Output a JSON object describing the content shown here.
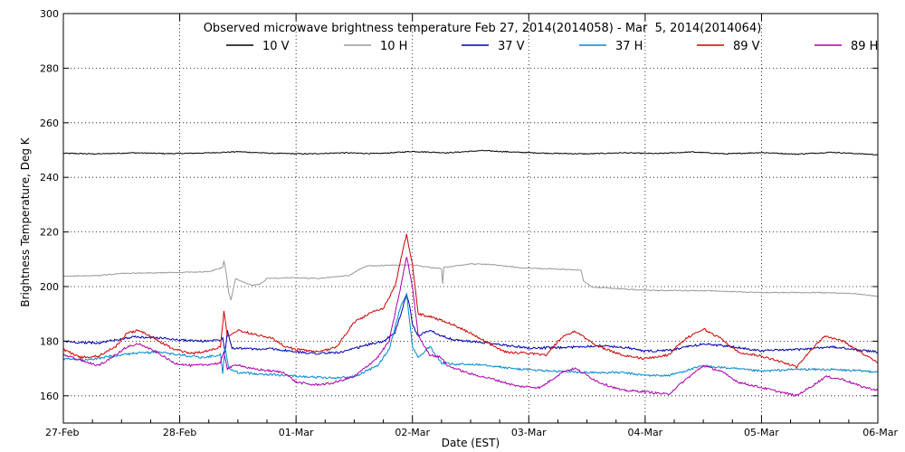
{
  "chart_data": {
    "type": "line",
    "title": "Observed microwave brightness temperature Feb 27, 2014(2014058) - Mar  5, 2014(2014064)",
    "xlabel": "Date (EST)",
    "ylabel": "Brightness Temperature, Deg K",
    "xlim": [
      0,
      7
    ],
    "ylim": [
      150,
      300
    ],
    "x_ticks": [
      {
        "x": 0,
        "label": "27-Feb"
      },
      {
        "x": 1,
        "label": "28-Feb"
      },
      {
        "x": 2,
        "label": "01-Mar"
      },
      {
        "x": 3,
        "label": "02-Mar"
      },
      {
        "x": 4,
        "label": "03-Mar"
      },
      {
        "x": 5,
        "label": "04-Mar"
      },
      {
        "x": 6,
        "label": "05-Mar"
      },
      {
        "x": 7,
        "label": "06-Mar"
      }
    ],
    "y_ticks": [
      "160",
      "180",
      "200",
      "220",
      "240",
      "260",
      "280",
      "300"
    ],
    "grid": true,
    "legend_position": "top",
    "series": [
      {
        "name": "10 V",
        "color": "#000000",
        "points": [
          [
            0,
            248.8
          ],
          [
            0.3,
            248.6
          ],
          [
            0.6,
            249.0
          ],
          [
            0.9,
            248.7
          ],
          [
            1.2,
            248.9
          ],
          [
            1.5,
            249.4
          ],
          [
            1.8,
            248.8
          ],
          [
            2.1,
            248.6
          ],
          [
            2.4,
            249.0
          ],
          [
            2.7,
            248.7
          ],
          [
            3.0,
            249.5
          ],
          [
            3.3,
            249.0
          ],
          [
            3.6,
            249.8
          ],
          [
            3.9,
            249.2
          ],
          [
            4.2,
            248.8
          ],
          [
            4.5,
            248.6
          ],
          [
            4.8,
            249.0
          ],
          [
            5.1,
            248.7
          ],
          [
            5.4,
            249.3
          ],
          [
            5.7,
            248.6
          ],
          [
            6.0,
            249.1
          ],
          [
            6.3,
            248.5
          ],
          [
            6.6,
            249.2
          ],
          [
            7.0,
            248.3
          ]
        ]
      },
      {
        "name": "10 H",
        "color": "#999999",
        "points": [
          [
            0,
            203.8
          ],
          [
            0.3,
            204.0
          ],
          [
            0.5,
            204.8
          ],
          [
            0.8,
            205.0
          ],
          [
            1.0,
            205.2
          ],
          [
            1.25,
            205.4
          ],
          [
            1.37,
            207.0
          ],
          [
            1.38,
            209.5
          ],
          [
            1.4,
            205.0
          ],
          [
            1.42,
            198.0
          ],
          [
            1.44,
            195.0
          ],
          [
            1.48,
            203.0
          ],
          [
            1.55,
            201.5
          ],
          [
            1.62,
            200.5
          ],
          [
            1.7,
            201.0
          ],
          [
            1.75,
            203.0
          ],
          [
            1.9,
            203.2
          ],
          [
            2.2,
            203.0
          ],
          [
            2.45,
            204.0
          ],
          [
            2.6,
            207.5
          ],
          [
            2.8,
            207.8
          ],
          [
            3.0,
            208.0
          ],
          [
            3.15,
            207.0
          ],
          [
            3.25,
            206.5
          ],
          [
            3.26,
            201.0
          ],
          [
            3.27,
            207.0
          ],
          [
            3.5,
            208.3
          ],
          [
            3.7,
            208.0
          ],
          [
            3.9,
            207.0
          ],
          [
            4.2,
            206.5
          ],
          [
            4.45,
            206.0
          ],
          [
            4.47,
            202.0
          ],
          [
            4.55,
            199.8
          ],
          [
            4.8,
            199.2
          ],
          [
            5.0,
            198.6
          ],
          [
            5.5,
            198.5
          ],
          [
            6.0,
            197.8
          ],
          [
            6.5,
            197.8
          ],
          [
            6.8,
            197.4
          ],
          [
            7.0,
            196.5
          ]
        ]
      },
      {
        "name": "37 V",
        "color": "#0000aa",
        "points": [
          [
            0,
            180.0
          ],
          [
            0.15,
            179.5
          ],
          [
            0.3,
            179.3
          ],
          [
            0.45,
            180.5
          ],
          [
            0.6,
            181.5
          ],
          [
            0.8,
            181.3
          ],
          [
            1.0,
            180.4
          ],
          [
            1.2,
            180.0
          ],
          [
            1.35,
            180.5
          ],
          [
            1.37,
            181.5
          ],
          [
            1.39,
            176.0
          ],
          [
            1.41,
            184.0
          ],
          [
            1.45,
            177.5
          ],
          [
            1.55,
            177.4
          ],
          [
            1.65,
            177.0
          ],
          [
            1.8,
            177.2
          ],
          [
            2.0,
            176.0
          ],
          [
            2.2,
            175.5
          ],
          [
            2.4,
            176.0
          ],
          [
            2.6,
            178.5
          ],
          [
            2.75,
            180.0
          ],
          [
            2.85,
            183.0
          ],
          [
            2.9,
            190.0
          ],
          [
            2.95,
            197.0
          ],
          [
            2.98,
            192.0
          ],
          [
            3.0,
            186.0
          ],
          [
            3.05,
            182.0
          ],
          [
            3.15,
            184.0
          ],
          [
            3.25,
            182.0
          ],
          [
            3.35,
            180.5
          ],
          [
            3.6,
            179.5
          ],
          [
            4.0,
            177.5
          ],
          [
            4.3,
            177.6
          ],
          [
            4.6,
            178.4
          ],
          [
            4.85,
            177.6
          ],
          [
            5.0,
            176.3
          ],
          [
            5.2,
            176.6
          ],
          [
            5.5,
            179.0
          ],
          [
            5.7,
            178.2
          ],
          [
            6.0,
            176.5
          ],
          [
            6.3,
            176.9
          ],
          [
            6.6,
            177.9
          ],
          [
            6.8,
            177.0
          ],
          [
            7.0,
            176.0
          ]
        ]
      },
      {
        "name": "37 H",
        "color": "#0088cc",
        "points": [
          [
            0,
            173.5
          ],
          [
            0.2,
            173.0
          ],
          [
            0.4,
            174.5
          ],
          [
            0.6,
            175.5
          ],
          [
            0.8,
            176.0
          ],
          [
            1.0,
            175.0
          ],
          [
            1.2,
            174.0
          ],
          [
            1.35,
            175.0
          ],
          [
            1.37,
            168.0
          ],
          [
            1.39,
            178.0
          ],
          [
            1.42,
            170.0
          ],
          [
            1.5,
            168.5
          ],
          [
            1.7,
            168.0
          ],
          [
            1.9,
            167.5
          ],
          [
            2.1,
            167.0
          ],
          [
            2.3,
            166.5
          ],
          [
            2.5,
            167.0
          ],
          [
            2.7,
            171.0
          ],
          [
            2.8,
            177.0
          ],
          [
            2.85,
            185.0
          ],
          [
            2.9,
            193.0
          ],
          [
            2.95,
            197.0
          ],
          [
            2.98,
            186.0
          ],
          [
            3.0,
            178.0
          ],
          [
            3.05,
            174.0
          ],
          [
            3.15,
            178.0
          ],
          [
            3.25,
            172.0
          ],
          [
            3.35,
            171.5
          ],
          [
            3.6,
            171.5
          ],
          [
            3.85,
            170.0
          ],
          [
            4.2,
            169.0
          ],
          [
            4.5,
            168.5
          ],
          [
            4.8,
            168.5
          ],
          [
            5.0,
            167.5
          ],
          [
            5.2,
            167.4
          ],
          [
            5.5,
            171.0
          ],
          [
            5.7,
            170.2
          ],
          [
            6.0,
            169.0
          ],
          [
            6.3,
            169.7
          ],
          [
            6.6,
            169.6
          ],
          [
            6.8,
            169.2
          ],
          [
            7.0,
            168.8
          ]
        ]
      },
      {
        "name": "89 V",
        "color": "#cc0000",
        "points": [
          [
            0,
            177.0
          ],
          [
            0.15,
            174.0
          ],
          [
            0.3,
            174.5
          ],
          [
            0.45,
            178.0
          ],
          [
            0.55,
            183.0
          ],
          [
            0.65,
            184.0
          ],
          [
            0.8,
            180.5
          ],
          [
            0.95,
            177.0
          ],
          [
            1.1,
            175.5
          ],
          [
            1.25,
            176.5
          ],
          [
            1.35,
            178.0
          ],
          [
            1.38,
            191.0
          ],
          [
            1.41,
            182.0
          ],
          [
            1.5,
            184.0
          ],
          [
            1.6,
            183.0
          ],
          [
            1.7,
            182.0
          ],
          [
            1.8,
            181.0
          ],
          [
            1.9,
            178.0
          ],
          [
            2.0,
            177.0
          ],
          [
            2.2,
            176.0
          ],
          [
            2.35,
            178.0
          ],
          [
            2.5,
            187.0
          ],
          [
            2.65,
            190.5
          ],
          [
            2.75,
            192.0
          ],
          [
            2.85,
            200.0
          ],
          [
            2.9,
            210.0
          ],
          [
            2.95,
            219.0
          ],
          [
            3.0,
            208.0
          ],
          [
            3.05,
            190.0
          ],
          [
            3.15,
            189.0
          ],
          [
            3.3,
            187.0
          ],
          [
            3.45,
            184.0
          ],
          [
            3.6,
            180.5
          ],
          [
            3.8,
            176.0
          ],
          [
            4.0,
            175.5
          ],
          [
            4.15,
            175.0
          ],
          [
            4.3,
            182.0
          ],
          [
            4.4,
            183.5
          ],
          [
            4.6,
            178.0
          ],
          [
            4.8,
            175.0
          ],
          [
            5.0,
            173.5
          ],
          [
            5.2,
            175.0
          ],
          [
            5.35,
            181.0
          ],
          [
            5.5,
            184.5
          ],
          [
            5.65,
            181.0
          ],
          [
            5.8,
            176.0
          ],
          [
            6.0,
            174.5
          ],
          [
            6.2,
            172.0
          ],
          [
            6.3,
            170.5
          ],
          [
            6.45,
            178.0
          ],
          [
            6.55,
            182.0
          ],
          [
            6.7,
            180.0
          ],
          [
            6.85,
            176.0
          ],
          [
            7.0,
            172.0
          ]
        ]
      },
      {
        "name": "89 H",
        "color": "#aa00aa",
        "points": [
          [
            0,
            175.0
          ],
          [
            0.15,
            173.0
          ],
          [
            0.3,
            171.0
          ],
          [
            0.45,
            175.0
          ],
          [
            0.55,
            178.0
          ],
          [
            0.65,
            179.0
          ],
          [
            0.8,
            176.0
          ],
          [
            0.95,
            172.0
          ],
          [
            1.1,
            171.0
          ],
          [
            1.25,
            171.5
          ],
          [
            1.35,
            172.0
          ],
          [
            1.38,
            176.0
          ],
          [
            1.41,
            170.0
          ],
          [
            1.5,
            171.5
          ],
          [
            1.6,
            170.0
          ],
          [
            1.7,
            169.5
          ],
          [
            1.8,
            169.0
          ],
          [
            1.9,
            168.5
          ],
          [
            2.0,
            165.0
          ],
          [
            2.15,
            164.0
          ],
          [
            2.3,
            164.5
          ],
          [
            2.5,
            167.0
          ],
          [
            2.7,
            174.0
          ],
          [
            2.8,
            180.0
          ],
          [
            2.85,
            190.0
          ],
          [
            2.9,
            200.0
          ],
          [
            2.95,
            211.0
          ],
          [
            3.0,
            200.0
          ],
          [
            3.05,
            182.0
          ],
          [
            3.15,
            175.0
          ],
          [
            3.25,
            174.0
          ],
          [
            3.3,
            171.0
          ],
          [
            3.5,
            168.0
          ],
          [
            3.7,
            166.0
          ],
          [
            3.9,
            163.5
          ],
          [
            4.1,
            163.0
          ],
          [
            4.3,
            169.0
          ],
          [
            4.4,
            170.0
          ],
          [
            4.6,
            165.0
          ],
          [
            4.8,
            162.0
          ],
          [
            5.0,
            161.5
          ],
          [
            5.2,
            160.5
          ],
          [
            5.35,
            166.0
          ],
          [
            5.5,
            171.0
          ],
          [
            5.65,
            169.0
          ],
          [
            5.8,
            165.0
          ],
          [
            6.0,
            163.0
          ],
          [
            6.2,
            161.0
          ],
          [
            6.3,
            160.0
          ],
          [
            6.45,
            164.0
          ],
          [
            6.55,
            167.0
          ],
          [
            6.7,
            166.0
          ],
          [
            6.85,
            163.5
          ],
          [
            7.0,
            162.0
          ]
        ]
      }
    ]
  }
}
